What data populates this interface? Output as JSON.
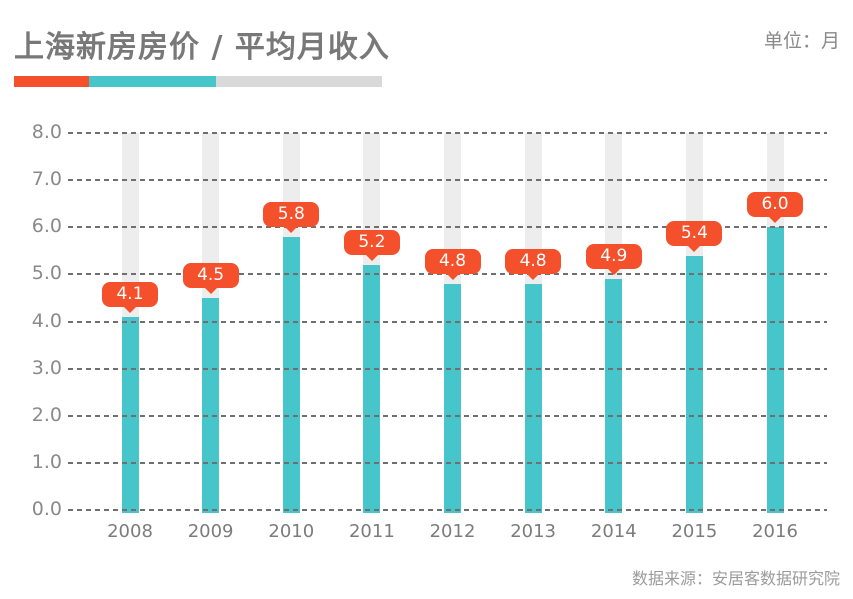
{
  "header": {
    "title": "上海新房房价 / 平均月收入",
    "unit_label": "单位：月",
    "underline_colors": [
      "#F4502B",
      "#46C5CB",
      "#D9D9D9"
    ]
  },
  "chart_data": {
    "type": "bar",
    "title": "上海新房房价 / 平均月收入",
    "unit": "月",
    "categories": [
      "2008",
      "2009",
      "2010",
      "2011",
      "2012",
      "2013",
      "2014",
      "2015",
      "2016"
    ],
    "values": [
      4.1,
      4.5,
      5.8,
      5.2,
      4.8,
      4.8,
      4.9,
      5.4,
      6.0
    ],
    "value_labels": [
      "4.1",
      "4.5",
      "5.8",
      "5.2",
      "4.8",
      "4.8",
      "4.9",
      "5.4",
      "6.0"
    ],
    "xlabel": "",
    "ylabel": "",
    "ylim": [
      0,
      8
    ],
    "ytick_step": 1,
    "ytick_labels": [
      "0.0",
      "1.0",
      "2.0",
      "3.0",
      "4.0",
      "5.0",
      "6.0",
      "7.0",
      "8.0"
    ],
    "grid": "dashed-horizontal",
    "legend": "none",
    "bar_color": "#46C5CB",
    "bar_bg_color": "#EDEDED",
    "label_bg_color": "#F4502B",
    "label_text_color": "#FFFFFF",
    "grid_color": "#6F6F6F"
  },
  "footer": {
    "source": "数据来源：安居客数据研究院"
  }
}
